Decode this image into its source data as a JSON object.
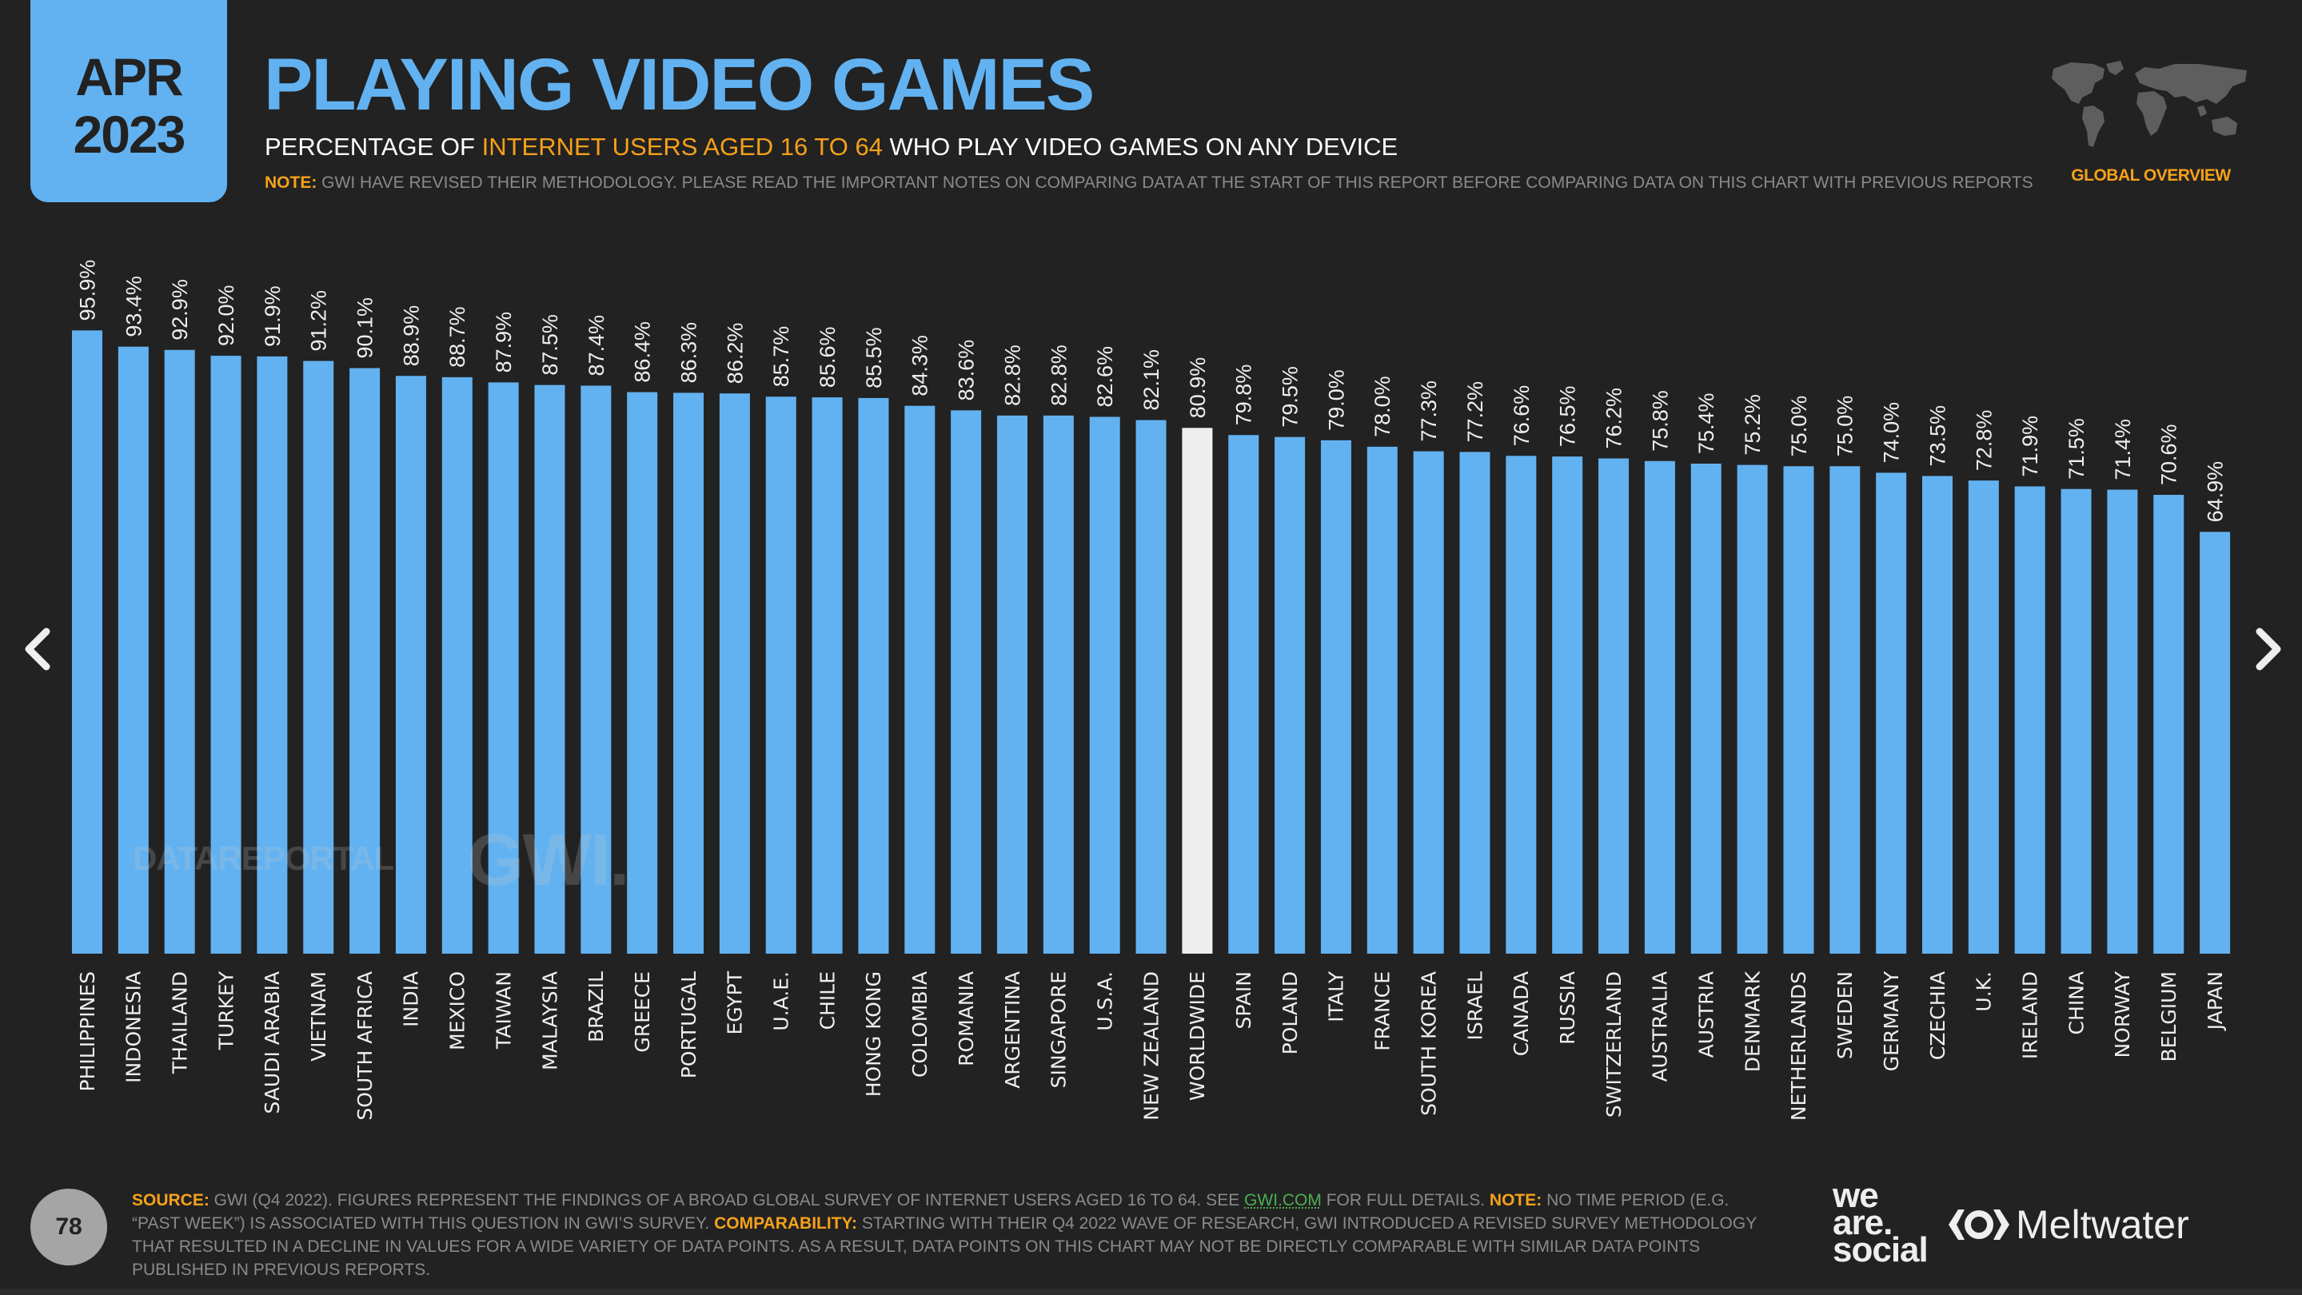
{
  "header": {
    "date_month": "APR",
    "date_year": "2023",
    "title": "PLAYING VIDEO GAMES",
    "subtitle_pre": "PERCENTAGE OF ",
    "subtitle_highlight": "INTERNET USERS AGED 16 TO 64",
    "subtitle_post": " WHO PLAY VIDEO GAMES ON ANY DEVICE",
    "note_label": "NOTE:",
    "note_text": " GWI HAVE REVISED THEIR METHODOLOGY. PLEASE READ THE IMPORTANT NOTES ON COMPARING DATA AT THE START OF THIS REPORT BEFORE COMPARING DATA ON THIS CHART WITH PREVIOUS REPORTS",
    "section_label": "GLOBAL OVERVIEW"
  },
  "colors": {
    "background": "#222222",
    "accent_blue": "#62b2f1",
    "highlight_bar": "#eeeeee",
    "orange": "#f5a11a",
    "text_gray": "#8a8a8a",
    "link_green": "#4caf50"
  },
  "watermarks": {
    "datareportal": "DATAREPORTAL",
    "gwi": "GWI."
  },
  "chart_data": {
    "type": "bar",
    "title": "PLAYING VIDEO GAMES",
    "xlabel": "",
    "ylabel": "",
    "ylim": [
      0,
      100
    ],
    "grid": false,
    "value_suffix": "%",
    "highlight_category": "WORLDWIDE",
    "categories": [
      "PHILIPPINES",
      "INDONESIA",
      "THAILAND",
      "TURKEY",
      "SAUDI ARABIA",
      "VIETNAM",
      "SOUTH AFRICA",
      "INDIA",
      "MEXICO",
      "TAIWAN",
      "MALAYSIA",
      "BRAZIL",
      "GREECE",
      "PORTUGAL",
      "EGYPT",
      "U.A.E.",
      "CHILE",
      "HONG KONG",
      "COLOMBIA",
      "ROMANIA",
      "ARGENTINA",
      "SINGAPORE",
      "U.S.A.",
      "NEW ZEALAND",
      "WORLDWIDE",
      "SPAIN",
      "POLAND",
      "ITALY",
      "FRANCE",
      "SOUTH KOREA",
      "ISRAEL",
      "CANADA",
      "RUSSIA",
      "SWITZERLAND",
      "AUSTRALIA",
      "AUSTRIA",
      "DENMARK",
      "NETHERLANDS",
      "SWEDEN",
      "GERMANY",
      "CZECHIA",
      "U.K.",
      "IRELAND",
      "CHINA",
      "NORWAY",
      "BELGIUM",
      "JAPAN"
    ],
    "values": [
      95.9,
      93.4,
      92.9,
      92.0,
      91.9,
      91.2,
      90.1,
      88.9,
      88.7,
      87.9,
      87.5,
      87.4,
      86.4,
      86.3,
      86.2,
      85.7,
      85.6,
      85.5,
      84.3,
      83.6,
      82.8,
      82.8,
      82.6,
      82.1,
      80.9,
      79.8,
      79.5,
      79.0,
      78.0,
      77.3,
      77.2,
      76.6,
      76.5,
      76.2,
      75.8,
      75.4,
      75.2,
      75.0,
      75.0,
      74.0,
      73.5,
      72.8,
      71.9,
      71.5,
      71.4,
      70.6,
      64.9
    ],
    "labels": [
      "95.9%",
      "93.4%",
      "92.9%",
      "92.0%",
      "91.9%",
      "91.2%",
      "90.1%",
      "88.9%",
      "88.7%",
      "87.9%",
      "87.5%",
      "87.4%",
      "86.4%",
      "86.3%",
      "86.2%",
      "85.7%",
      "85.6%",
      "85.5%",
      "84.3%",
      "83.6%",
      "82.8%",
      "82.8%",
      "82.6%",
      "82.1%",
      "80.9%",
      "79.8%",
      "79.5%",
      "79.0%",
      "78.0%",
      "77.3%",
      "77.2%",
      "76.6%",
      "76.5%",
      "76.2%",
      "75.8%",
      "75.4%",
      "75.2%",
      "75.0%",
      "75.0%",
      "74.0%",
      "73.5%",
      "72.8%",
      "71.9%",
      "71.5%",
      "71.4%",
      "70.6%",
      "64.9%"
    ]
  },
  "footer": {
    "page_number": "78",
    "source_label": "SOURCE:",
    "source_text_1": " GWI (Q4 2022). FIGURES REPRESENT THE FINDINGS OF A BROAD GLOBAL SURVEY OF INTERNET USERS AGED 16 TO 64. SEE ",
    "source_link": "GWI.COM",
    "source_text_2": " FOR FULL DETAILS. ",
    "note_label": "NOTE:",
    "note_text": " NO TIME PERIOD (E.G. “PAST WEEK”) IS ASSOCIATED WITH THIS QUESTION IN GWI’S SURVEY. ",
    "comparability_label": "COMPARABILITY:",
    "comparability_text": " STARTING WITH THEIR Q4 2022 WAVE OF RESEARCH, GWI INTRODUCED A REVISED SURVEY METHODOLOGY THAT RESULTED IN A DECLINE IN VALUES FOR A WIDE VARIETY OF DATA POINTS. AS A RESULT, DATA POINTS ON THIS CHART MAY NOT BE DIRECTLY COMPARABLE WITH SIMILAR DATA POINTS PUBLISHED IN PREVIOUS REPORTS.",
    "logo_we": "we",
    "logo_are": "are.",
    "logo_social": "social",
    "logo_meltwater": "Meltwater"
  },
  "navigation": {
    "prev_icon": "chevron-left-icon",
    "next_icon": "chevron-right-icon"
  }
}
